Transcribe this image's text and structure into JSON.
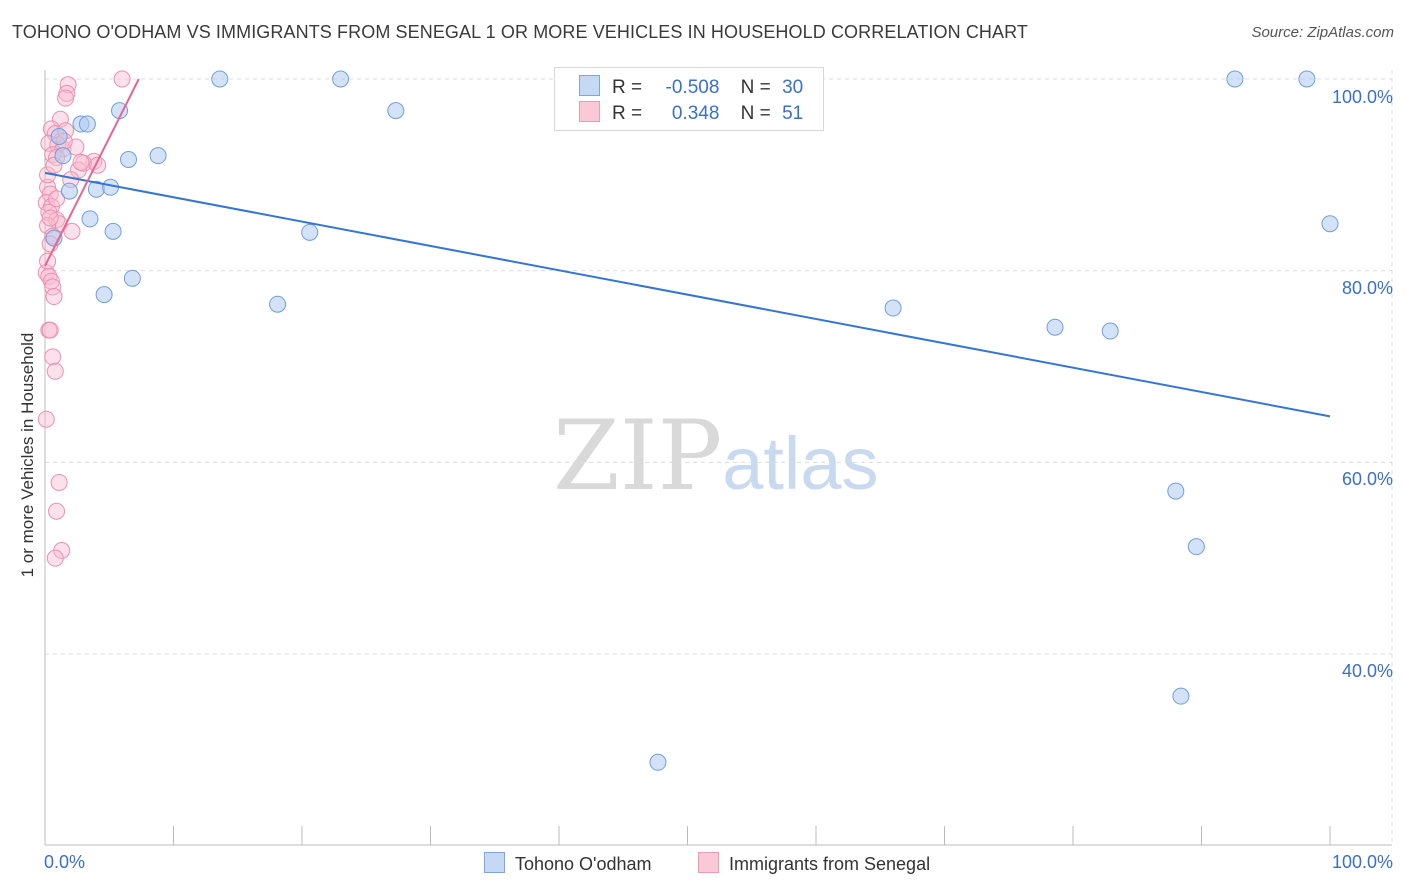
{
  "header": {
    "title": "TOHONO O'ODHAM VS IMMIGRANTS FROM SENEGAL 1 OR MORE VEHICLES IN HOUSEHOLD CORRELATION CHART",
    "source": "Source: ZipAtlas.com"
  },
  "watermark": {
    "zip": "ZIP",
    "atlas": "atlas"
  },
  "legend": {
    "r_label": "R =",
    "n_label": "N =",
    "series1": {
      "r": "-0.508",
      "n": "30"
    },
    "series2": {
      "r": "0.348",
      "n": "51"
    }
  },
  "chart_data": {
    "type": "scatter",
    "title": "TOHONO O'ODHAM VS IMMIGRANTS FROM SENEGAL 1 OR MORE VEHICLES IN HOUSEHOLD CORRELATION CHART",
    "xlabel": "",
    "ylabel": "1 or more Vehicles in Household",
    "xlim": [
      0,
      100
    ],
    "ylim": [
      20,
      102
    ],
    "x_tick_labels": [
      "0.0%",
      "100.0%"
    ],
    "y_tick_labels": [
      "100.0%",
      "80.0%",
      "60.0%",
      "40.0%"
    ],
    "y_ticks": [
      100,
      80,
      60,
      40
    ],
    "grid": true,
    "colors": {
      "series1_fill": "#aecbf0",
      "series1_stroke": "#6f9fdf",
      "series1_line": "#3575d3",
      "series2_fill": "#f8bcd0",
      "series2_stroke": "#ee8fae",
      "series2_line": "#e8658f",
      "axis_text": "#3b6fc9",
      "grid": "#dcdcdc"
    },
    "series": [
      {
        "name": "Tohono O'odham",
        "r": -0.508,
        "n": 30,
        "trend": {
          "x": [
            0,
            100
          ],
          "y": [
            90.2,
            64.8
          ]
        },
        "points": [
          {
            "x": 13.6,
            "y": 100.0
          },
          {
            "x": 23.0,
            "y": 100.0
          },
          {
            "x": 92.6,
            "y": 100.0
          },
          {
            "x": 98.2,
            "y": 100.0
          },
          {
            "x": 5.8,
            "y": 96.7
          },
          {
            "x": 27.3,
            "y": 96.7
          },
          {
            "x": 2.8,
            "y": 95.3
          },
          {
            "x": 3.3,
            "y": 95.3
          },
          {
            "x": 8.8,
            "y": 92.0
          },
          {
            "x": 1.4,
            "y": 92.0
          },
          {
            "x": 6.5,
            "y": 91.6
          },
          {
            "x": 4.0,
            "y": 88.5
          },
          {
            "x": 5.1,
            "y": 88.7
          },
          {
            "x": 1.9,
            "y": 88.3
          },
          {
            "x": 3.5,
            "y": 85.4
          },
          {
            "x": 5.3,
            "y": 84.1
          },
          {
            "x": 20.6,
            "y": 84.0
          },
          {
            "x": 0.7,
            "y": 83.4
          },
          {
            "x": 6.8,
            "y": 79.2
          },
          {
            "x": 4.6,
            "y": 77.5
          },
          {
            "x": 18.1,
            "y": 76.5
          },
          {
            "x": 66.0,
            "y": 76.1
          },
          {
            "x": 78.6,
            "y": 74.1
          },
          {
            "x": 82.9,
            "y": 73.7
          },
          {
            "x": 100.0,
            "y": 84.9
          },
          {
            "x": 88.0,
            "y": 57.0
          },
          {
            "x": 89.6,
            "y": 51.2
          },
          {
            "x": 88.4,
            "y": 35.6
          },
          {
            "x": 47.7,
            "y": 28.7
          },
          {
            "x": 1.1,
            "y": 94.0
          }
        ]
      },
      {
        "name": "Immigrants from Senegal",
        "r": 0.348,
        "n": 51,
        "trend": {
          "x": [
            0,
            7.3
          ],
          "y": [
            80.5,
            100.0
          ]
        },
        "points": [
          {
            "x": 6.0,
            "y": 100.0
          },
          {
            "x": 1.8,
            "y": 99.4
          },
          {
            "x": 1.7,
            "y": 98.5
          },
          {
            "x": 1.6,
            "y": 98.0
          },
          {
            "x": 1.2,
            "y": 95.8
          },
          {
            "x": 0.5,
            "y": 94.8
          },
          {
            "x": 0.8,
            "y": 94.3
          },
          {
            "x": 1.6,
            "y": 94.6
          },
          {
            "x": 0.3,
            "y": 93.3
          },
          {
            "x": 1.0,
            "y": 93.1
          },
          {
            "x": 1.4,
            "y": 92.7
          },
          {
            "x": 2.4,
            "y": 92.9
          },
          {
            "x": 0.6,
            "y": 92.1
          },
          {
            "x": 0.9,
            "y": 91.8
          },
          {
            "x": 3.8,
            "y": 91.4
          },
          {
            "x": 3.0,
            "y": 91.2
          },
          {
            "x": 2.6,
            "y": 90.5
          },
          {
            "x": 4.1,
            "y": 91.0
          },
          {
            "x": 0.2,
            "y": 88.7
          },
          {
            "x": 0.4,
            "y": 88.0
          },
          {
            "x": 0.1,
            "y": 87.1
          },
          {
            "x": 0.5,
            "y": 86.7
          },
          {
            "x": 0.3,
            "y": 86.1
          },
          {
            "x": 0.9,
            "y": 85.3
          },
          {
            "x": 1.1,
            "y": 84.9
          },
          {
            "x": 0.2,
            "y": 84.7
          },
          {
            "x": 2.1,
            "y": 84.1
          },
          {
            "x": 0.6,
            "y": 83.6
          },
          {
            "x": 0.4,
            "y": 82.8
          },
          {
            "x": 0.1,
            "y": 79.8
          },
          {
            "x": 0.3,
            "y": 79.4
          },
          {
            "x": 0.5,
            "y": 78.9
          },
          {
            "x": 0.6,
            "y": 78.3
          },
          {
            "x": 0.7,
            "y": 77.3
          },
          {
            "x": 0.3,
            "y": 73.8
          },
          {
            "x": 0.4,
            "y": 73.8
          },
          {
            "x": 0.6,
            "y": 71.0
          },
          {
            "x": 0.8,
            "y": 69.5
          },
          {
            "x": 0.1,
            "y": 64.5
          },
          {
            "x": 1.1,
            "y": 57.9
          },
          {
            "x": 0.9,
            "y": 54.9
          },
          {
            "x": 1.3,
            "y": 50.8
          },
          {
            "x": 0.8,
            "y": 50.0
          },
          {
            "x": 0.2,
            "y": 90.0
          },
          {
            "x": 2.0,
            "y": 89.5
          },
          {
            "x": 0.7,
            "y": 91.0
          },
          {
            "x": 1.5,
            "y": 93.5
          },
          {
            "x": 0.4,
            "y": 85.5
          },
          {
            "x": 0.9,
            "y": 87.5
          },
          {
            "x": 2.8,
            "y": 91.3
          },
          {
            "x": 0.2,
            "y": 81.0
          }
        ]
      }
    ]
  }
}
